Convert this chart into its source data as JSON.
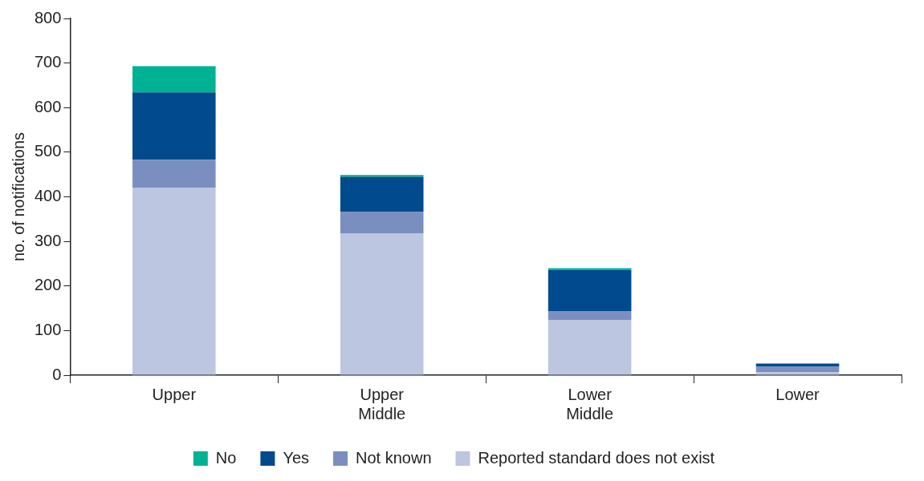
{
  "chart_data": {
    "type": "bar",
    "stacked": true,
    "ylabel": "no. of notifications",
    "categories": [
      "Upper",
      "Upper Middle",
      "Lower Middle",
      "Lower"
    ],
    "series": [
      {
        "name": "Reported standard does not exist",
        "color": "#bdc6e0",
        "values": [
          420,
          318,
          123,
          7
        ]
      },
      {
        "name": "Not known",
        "color": "#7a8fc0",
        "values": [
          63,
          48,
          21,
          12
        ]
      },
      {
        "name": "Yes",
        "color": "#004a8d",
        "values": [
          151,
          79,
          92,
          7
        ]
      },
      {
        "name": "No",
        "color": "#00b294",
        "values": [
          59,
          4,
          4,
          0
        ]
      }
    ],
    "ylim": [
      0,
      800
    ],
    "yticks": [
      0,
      100,
      200,
      300,
      400,
      500,
      600,
      700,
      800
    ],
    "grid": false,
    "legend": "bottom"
  }
}
